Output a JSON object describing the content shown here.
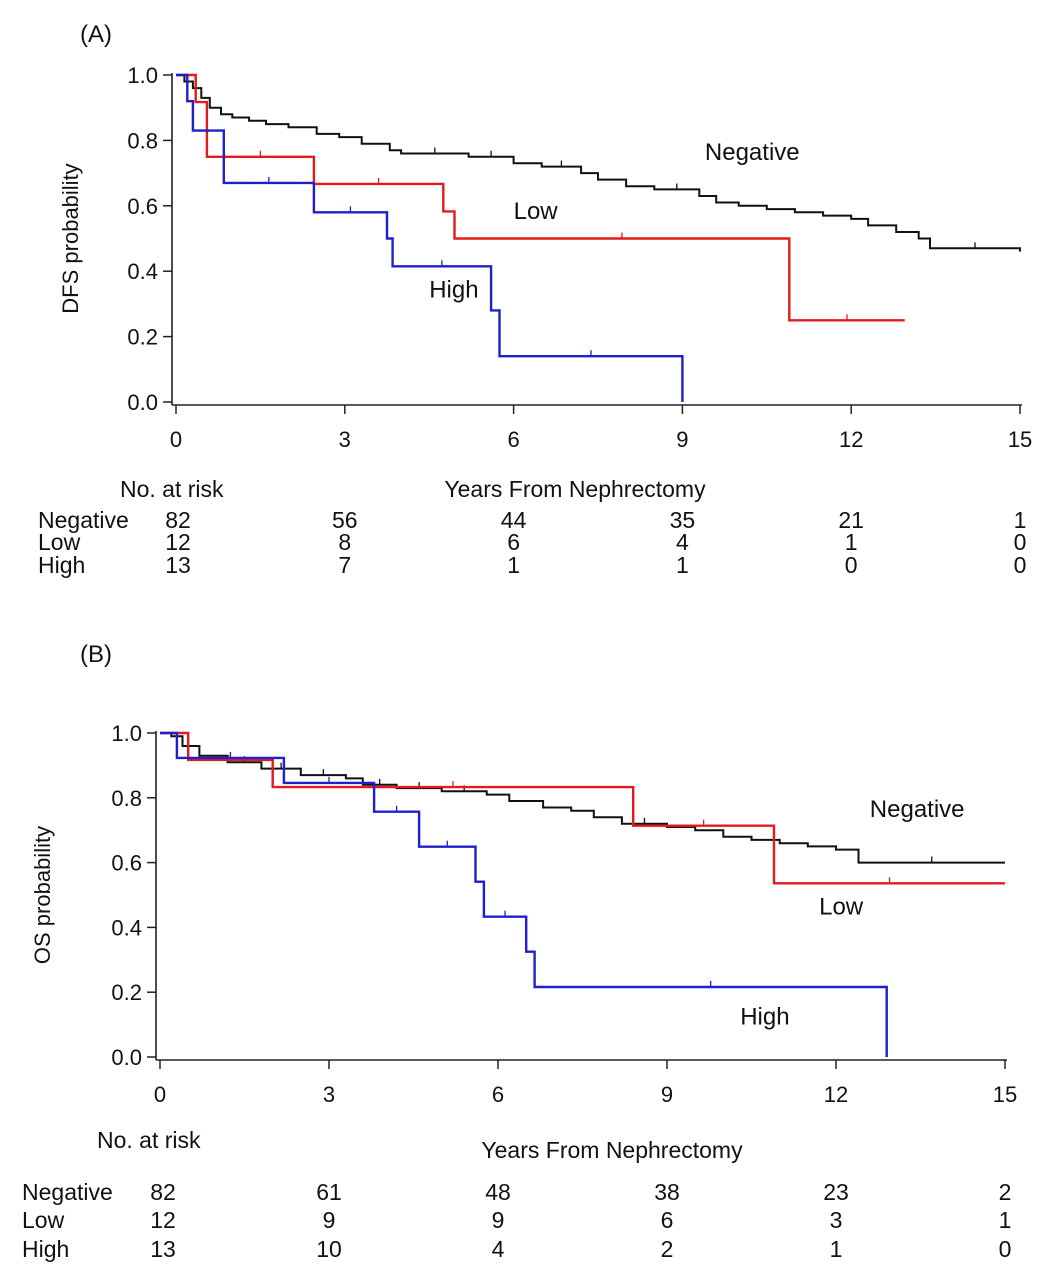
{
  "panels": {
    "a": {
      "label": "(A)"
    },
    "b": {
      "label": "(B)"
    }
  },
  "colors": {
    "Negative": "#111111",
    "Low": "#e41a1c",
    "High": "#1f1fcc"
  },
  "chart_data": [
    {
      "type": "line",
      "step": true,
      "title": "",
      "xlabel": "Years From Nephrectomy",
      "ylabel": "DFS probability",
      "xlim": [
        0,
        15
      ],
      "ylim": [
        0,
        1
      ],
      "xticks": [
        "0",
        "3",
        "6",
        "9",
        "12",
        "15"
      ],
      "yticks": [
        "0.0",
        "0.2",
        "0.4",
        "0.6",
        "0.8",
        "1.0"
      ],
      "series": [
        {
          "name": "Negative",
          "x": [
            0,
            0.15,
            0.3,
            0.45,
            0.6,
            0.8,
            1.0,
            1.3,
            1.6,
            2.0,
            2.5,
            2.9,
            3.3,
            3.8,
            4.0,
            5.2,
            6.0,
            6.5,
            7.2,
            7.5,
            8.0,
            8.5,
            9.3,
            9.6,
            10.0,
            10.5,
            11.0,
            11.5,
            12.0,
            12.3,
            12.8,
            13.2,
            13.4,
            15.0
          ],
          "y": [
            1.0,
            0.98,
            0.96,
            0.93,
            0.9,
            0.88,
            0.87,
            0.86,
            0.85,
            0.84,
            0.82,
            0.81,
            0.79,
            0.77,
            0.76,
            0.75,
            0.73,
            0.72,
            0.7,
            0.68,
            0.66,
            0.65,
            0.63,
            0.61,
            0.6,
            0.59,
            0.58,
            0.57,
            0.56,
            0.54,
            0.52,
            0.5,
            0.47,
            0.46
          ]
        },
        {
          "name": "Low",
          "x": [
            0,
            0.35,
            0.55,
            2.45,
            4.75,
            4.95,
            10.9,
            12.95
          ],
          "y": [
            1.0,
            0.917,
            0.75,
            0.667,
            0.583,
            0.5,
            0.25,
            0.25
          ]
        },
        {
          "name": "High",
          "x": [
            0,
            0.2,
            0.3,
            0.85,
            2.45,
            3.75,
            3.85,
            5.6,
            5.75,
            9.0
          ],
          "y": [
            1.0,
            0.92,
            0.83,
            0.67,
            0.58,
            0.5,
            0.415,
            0.28,
            0.14,
            0.0
          ]
        }
      ],
      "labels": [
        {
          "series": "Negative",
          "text": "Negative",
          "x": 9.4,
          "y": 0.74
        },
        {
          "series": "Low",
          "text": "Low",
          "x": 6.0,
          "y": 0.56
        },
        {
          "series": "High",
          "text": "High",
          "x": 4.5,
          "y": 0.32
        }
      ],
      "risk_table": {
        "title": "No. at risk",
        "times": [
          0,
          3,
          6,
          9,
          12,
          15
        ],
        "rows": [
          {
            "group": "Negative",
            "values": [
              "82",
              "56",
              "44",
              "35",
              "21",
              "1"
            ]
          },
          {
            "group": "Low",
            "values": [
              "12",
              "8",
              "6",
              "4",
              "1",
              "0"
            ]
          },
          {
            "group": "High",
            "values": [
              "13",
              "7",
              "1",
              "1",
              "0",
              "0"
            ]
          }
        ]
      }
    },
    {
      "type": "line",
      "step": true,
      "title": "",
      "xlabel": "Years From Nephrectomy",
      "ylabel": "OS probability",
      "xlim": [
        0,
        15
      ],
      "ylim": [
        0,
        1
      ],
      "xticks": [
        "0",
        "3",
        "6",
        "9",
        "12",
        "15"
      ],
      "yticks": [
        "0.0",
        "0.2",
        "0.4",
        "0.6",
        "0.8",
        "1.0"
      ],
      "series": [
        {
          "name": "Negative",
          "x": [
            0,
            0.2,
            0.4,
            0.7,
            1.2,
            1.8,
            2.5,
            3.3,
            3.6,
            4.2,
            5.0,
            5.8,
            6.2,
            6.8,
            7.3,
            7.7,
            8.2,
            9.0,
            9.5,
            10.0,
            10.5,
            11.0,
            11.5,
            12.0,
            12.4,
            15.0
          ],
          "y": [
            1.0,
            0.99,
            0.96,
            0.93,
            0.91,
            0.89,
            0.87,
            0.86,
            0.84,
            0.83,
            0.82,
            0.81,
            0.79,
            0.77,
            0.76,
            0.74,
            0.72,
            0.71,
            0.7,
            0.68,
            0.67,
            0.66,
            0.65,
            0.64,
            0.6,
            0.6
          ]
        },
        {
          "name": "Low",
          "x": [
            0,
            0.5,
            2.0,
            8.4,
            10.9,
            15.0
          ],
          "y": [
            1.0,
            0.917,
            0.833,
            0.714,
            0.536,
            0.536
          ]
        },
        {
          "name": "High",
          "x": [
            0,
            0.3,
            2.2,
            3.8,
            4.6,
            5.6,
            5.75,
            6.5,
            6.65,
            12.9
          ],
          "y": [
            1.0,
            0.923,
            0.846,
            0.757,
            0.649,
            0.541,
            0.433,
            0.325,
            0.216,
            0.0
          ]
        }
      ],
      "labels": [
        {
          "series": "Negative",
          "text": "Negative",
          "x": 12.6,
          "y": 0.74
        },
        {
          "series": "Low",
          "text": "Low",
          "x": 11.7,
          "y": 0.44
        },
        {
          "series": "High",
          "text": "High",
          "x": 10.3,
          "y": 0.1
        }
      ],
      "risk_table": {
        "title": "No. at risk",
        "times": [
          0,
          3,
          6,
          9,
          12,
          15
        ],
        "rows": [
          {
            "group": "Negative",
            "values": [
              "82",
              "61",
              "48",
              "38",
              "23",
              "2"
            ]
          },
          {
            "group": "Low",
            "values": [
              "12",
              "9",
              "9",
              "6",
              "3",
              "1"
            ]
          },
          {
            "group": "High",
            "values": [
              "13",
              "10",
              "4",
              "2",
              "1",
              "0"
            ]
          }
        ]
      }
    }
  ]
}
